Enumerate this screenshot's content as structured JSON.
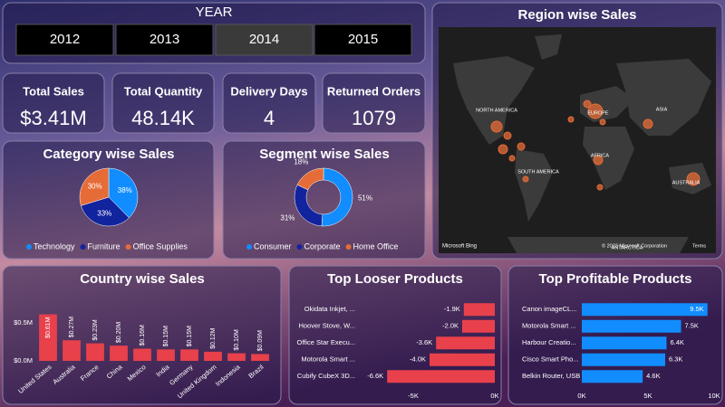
{
  "year_slicer": {
    "title": "YEAR",
    "years": [
      "2012",
      "2013",
      "2014",
      "2015"
    ],
    "selected": "2014"
  },
  "kpis": [
    {
      "label": "Total Sales",
      "value": "$3.41M"
    },
    {
      "label": "Total Quantity",
      "value": "48.14K"
    },
    {
      "label": "Delivery Days",
      "value": "4"
    },
    {
      "label": "Returned Orders",
      "value": "1079"
    }
  ],
  "map": {
    "title": "Region wise Sales",
    "labels": [
      "NORTH AMERICA",
      "EUROPE",
      "ASIA",
      "SOUTH AMERICA",
      "AFRICA",
      "AUSTRALIA",
      "ANTARCTICA"
    ],
    "attribution": "Microsoft Bing",
    "copyright": "© 2023 Microsoft Corporation",
    "terms": "Terms"
  },
  "chart_data": [
    {
      "type": "pie",
      "title": "Category wise Sales",
      "categories": [
        "Technology",
        "Furniture",
        "Office Supplies"
      ],
      "values": [
        38,
        33,
        30
      ],
      "value_labels": [
        "38%",
        "33%",
        "30%"
      ],
      "colors": [
        "#118DFF",
        "#12239E",
        "#E66C37"
      ],
      "legend": "bottom"
    },
    {
      "type": "donut",
      "title": "Segment wise Sales",
      "categories": [
        "Consumer",
        "Corporate",
        "Home Office"
      ],
      "values": [
        51,
        31,
        18
      ],
      "value_labels": [
        "51%",
        "31%",
        "18%"
      ],
      "colors": [
        "#118DFF",
        "#12239E",
        "#E66C37"
      ],
      "legend": "bottom"
    },
    {
      "type": "bar",
      "title": "Country wise Sales",
      "categories": [
        "United States",
        "Australia",
        "France",
        "China",
        "Mexico",
        "India",
        "Germany",
        "United Kingdom",
        "Indonesia",
        "Brazil"
      ],
      "values": [
        610000,
        270000,
        230000,
        200000,
        160000,
        150000,
        150000,
        120000,
        100000,
        90000
      ],
      "value_labels": [
        "$0.61M",
        "$0.27M",
        "$0.23M",
        "$0.20M",
        "$0.16M",
        "$0.15M",
        "$0.15M",
        "$0.12M",
        "$0.10M",
        "$0.09M"
      ],
      "color": "#E8414B",
      "ylim": [
        0,
        700000
      ],
      "yticks": [
        {
          "value": 0,
          "label": "$0.0M"
        },
        {
          "value": 500000,
          "label": "$0.5M"
        }
      ]
    },
    {
      "type": "hbar",
      "title": "Top Looser Products",
      "categories": [
        "Okidata Inkjet, ...",
        "Hoover Stove, W...",
        "Office Star Execu...",
        "Motorola Smart ...",
        "Cubify CubeX 3D..."
      ],
      "values": [
        -1900,
        -2000,
        -3600,
        -4000,
        -6600
      ],
      "value_labels": [
        "-1.9K",
        "-2.0K",
        "-3.6K",
        "-4.0K",
        "-6.6K"
      ],
      "color": "#E8414B",
      "xlim": [
        -7000,
        0
      ],
      "xticks": [
        {
          "value": -5000,
          "label": "-5K"
        },
        {
          "value": 0,
          "label": "0K"
        }
      ]
    },
    {
      "type": "hbar",
      "title": "Top Profitable Products",
      "categories": [
        "Canon imageCL...",
        "Motorola Smart ...",
        "Harbour Creatio...",
        "Cisco Smart Pho...",
        "Belkin Router, USB"
      ],
      "values": [
        9500,
        7500,
        6400,
        6300,
        4600
      ],
      "value_labels": [
        "9.5K",
        "7.5K",
        "6.4K",
        "6.3K",
        "4.6K"
      ],
      "color": "#118DFF",
      "xlim": [
        0,
        10000
      ],
      "xticks": [
        {
          "value": 0,
          "label": "0K"
        },
        {
          "value": 5000,
          "label": "5K"
        },
        {
          "value": 10000,
          "label": "10K"
        }
      ]
    }
  ]
}
